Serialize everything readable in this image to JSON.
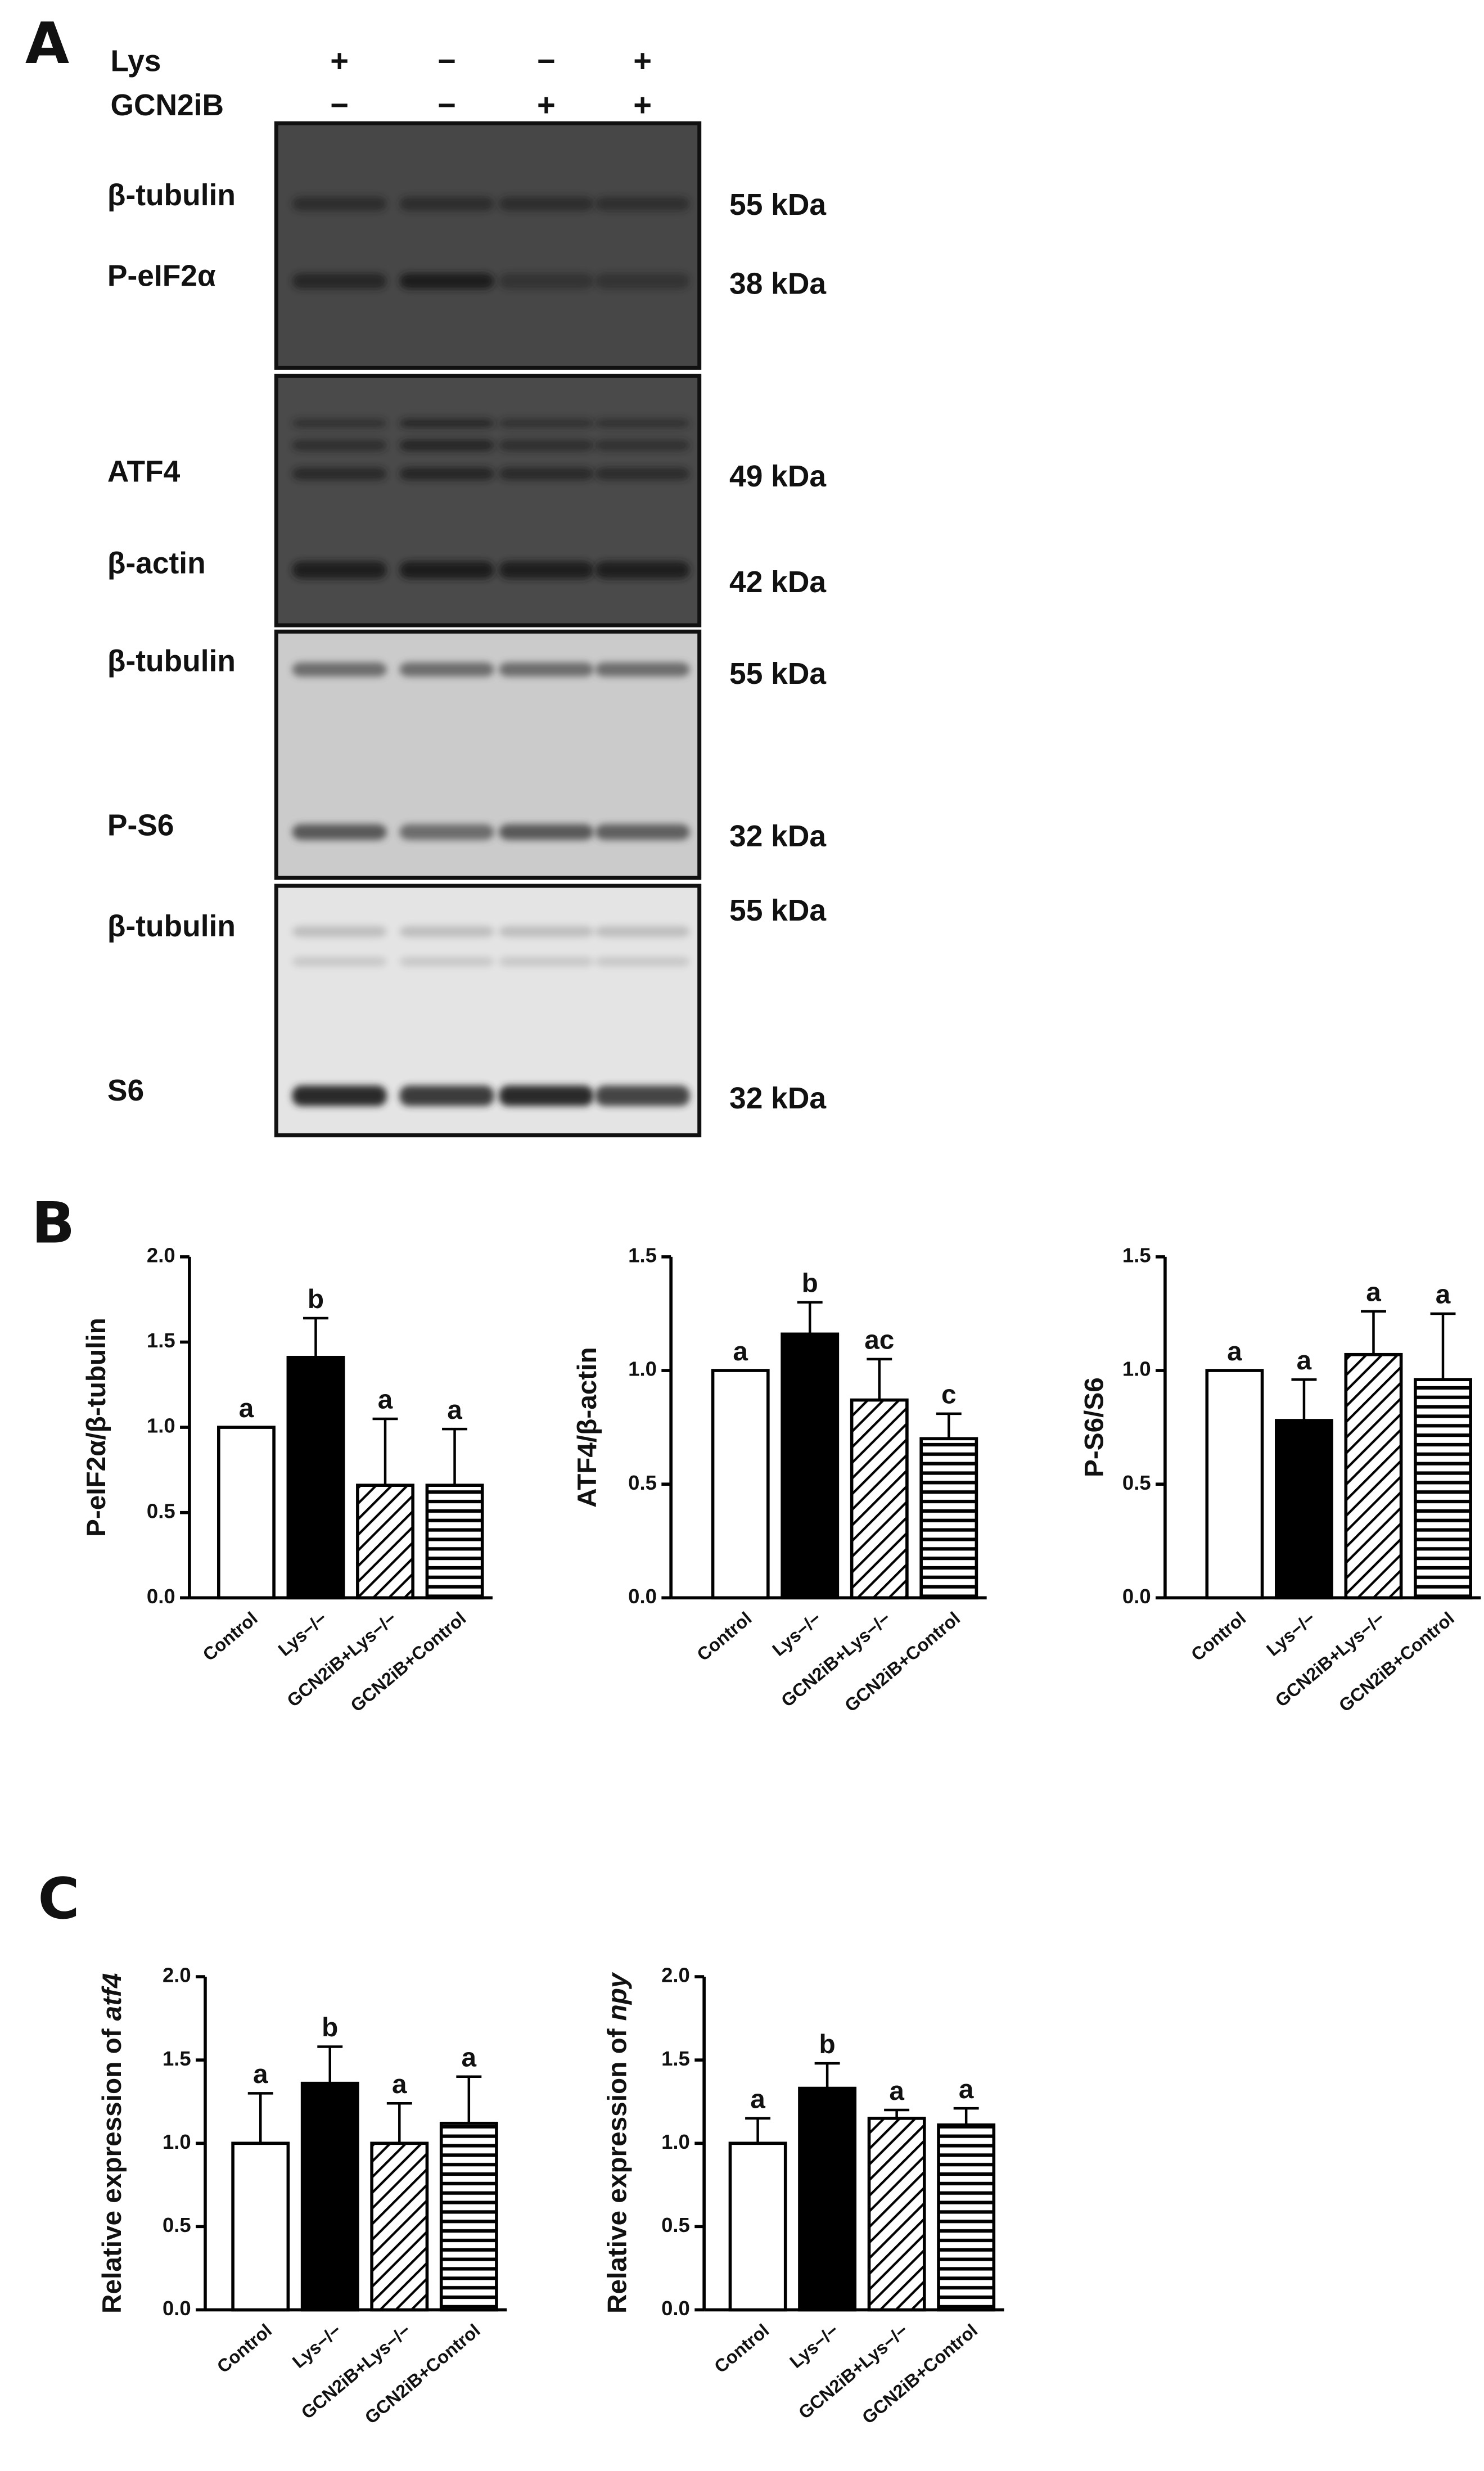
{
  "panel_labels": [
    "A",
    "B",
    "C"
  ],
  "blot": {
    "header": [
      {
        "name": "Lys",
        "signs": [
          "+",
          "−",
          "−",
          "+"
        ]
      },
      {
        "name": "GCN2iB",
        "signs": [
          "−",
          "−",
          "+",
          "+"
        ]
      }
    ],
    "membranes": [
      {
        "bands": [
          {
            "name": "β-tubulin",
            "size": "55 kDa"
          },
          {
            "name": "P-eIF2α",
            "size": "38 kDa"
          }
        ]
      },
      {
        "bands": [
          {
            "name": "ATF4",
            "size": "49 kDa"
          },
          {
            "name": "β-actin",
            "size": "42 kDa"
          }
        ]
      },
      {
        "bands": [
          {
            "name": "β-tubulin",
            "size": "55 kDa"
          },
          {
            "name": "P-S6",
            "size": "32 kDa"
          }
        ]
      },
      {
        "bands": [
          {
            "name": "β-tubulin",
            "size": "55 kDa"
          },
          {
            "name": "S6",
            "size": "32 kDa"
          }
        ]
      }
    ]
  },
  "chart_data": [
    {
      "type": "bar",
      "ylabel": {
        "text": "P-eIF2α/β-tubulin"
      },
      "categories": [
        "Control",
        "Lys−/−",
        "GCN2iB+Lys−/−",
        "GCN2iB+Control"
      ],
      "fills": [
        "white",
        "black",
        "diagonal",
        "horizontal"
      ],
      "values": [
        1.0,
        1.41,
        0.66,
        0.66
      ],
      "errors": [
        null,
        0.23,
        0.39,
        0.33
      ],
      "labels": [
        "a",
        "b",
        "a",
        "a"
      ],
      "ylim": [
        0,
        2
      ],
      "yticks": [
        {
          "value": 0,
          "label": "0.0"
        },
        0.5,
        {
          "value": 1,
          "label": "1.0"
        },
        1.5,
        {
          "value": 2,
          "label": "2.0"
        }
      ]
    },
    {
      "type": "bar",
      "ylabel": {
        "text": "ATF4/β-actin"
      },
      "categories": [
        "Control",
        "Lys−/−",
        "GCN2iB+Lys−/−",
        "GCN2iB+Control"
      ],
      "fills": [
        "white",
        "black",
        "diagonal",
        "horizontal"
      ],
      "values": [
        1.0,
        1.16,
        0.87,
        0.7
      ],
      "errors": [
        null,
        0.14,
        0.18,
        0.11
      ],
      "labels": [
        "a",
        "b",
        "ac",
        "c"
      ],
      "ylim": [
        0,
        1.5
      ],
      "yticks": [
        {
          "value": 0,
          "label": "0.0"
        },
        0.5,
        {
          "value": 1,
          "label": "1.0"
        },
        1.5
      ]
    },
    {
      "type": "bar",
      "ylabel": {
        "text": "P-S6/S6"
      },
      "categories": [
        "Control",
        "Lys−/−",
        "GCN2iB+Lys−/−",
        "GCN2iB+Control"
      ],
      "fills": [
        "white",
        "black",
        "diagonal",
        "horizontal"
      ],
      "values": [
        1.0,
        0.78,
        1.07,
        0.96
      ],
      "errors": [
        null,
        0.18,
        0.19,
        0.29
      ],
      "labels": [
        "a",
        "a",
        "a",
        "a"
      ],
      "ylim": [
        0,
        1.5
      ],
      "yticks": [
        {
          "value": 0,
          "label": "0.0"
        },
        0.5,
        {
          "value": 1,
          "label": "1.0"
        },
        1.5
      ]
    },
    {
      "type": "bar",
      "ylabel": {
        "text": "Relative expression of",
        "gene": "atf4"
      },
      "categories": [
        "Control",
        "Lys−/−",
        "GCN2iB+Lys−/−",
        "GCN2iB+Control"
      ],
      "fills": [
        "white",
        "black",
        "diagonal",
        "horizontal"
      ],
      "values": [
        1.0,
        1.36,
        1.0,
        1.12
      ],
      "errors": [
        0.3,
        0.22,
        0.24,
        0.28
      ],
      "labels": [
        "a",
        "b",
        "a",
        "a"
      ],
      "ylim": [
        0,
        2
      ],
      "yticks": [
        {
          "value": 0,
          "label": "0.0"
        },
        0.5,
        {
          "value": 1,
          "label": "1.0"
        },
        1.5,
        {
          "value": 2,
          "label": "2.0"
        }
      ]
    },
    {
      "type": "bar",
      "ylabel": {
        "text": "Relative expression of",
        "gene": "npy"
      },
      "categories": [
        "Control",
        "Lys−/−",
        "GCN2iB+Lys−/−",
        "GCN2iB+Control"
      ],
      "fills": [
        "white",
        "black",
        "diagonal",
        "horizontal"
      ],
      "values": [
        1.0,
        1.33,
        1.15,
        1.11
      ],
      "errors": [
        0.15,
        0.15,
        0.05,
        0.1
      ],
      "labels": [
        "a",
        "b",
        "a",
        "a"
      ],
      "ylim": [
        0,
        2
      ],
      "yticks": [
        {
          "value": 0,
          "label": "0.0"
        },
        0.5,
        {
          "value": 1,
          "label": "1.0"
        },
        1.5,
        {
          "value": 2,
          "label": "2.0"
        }
      ]
    }
  ]
}
